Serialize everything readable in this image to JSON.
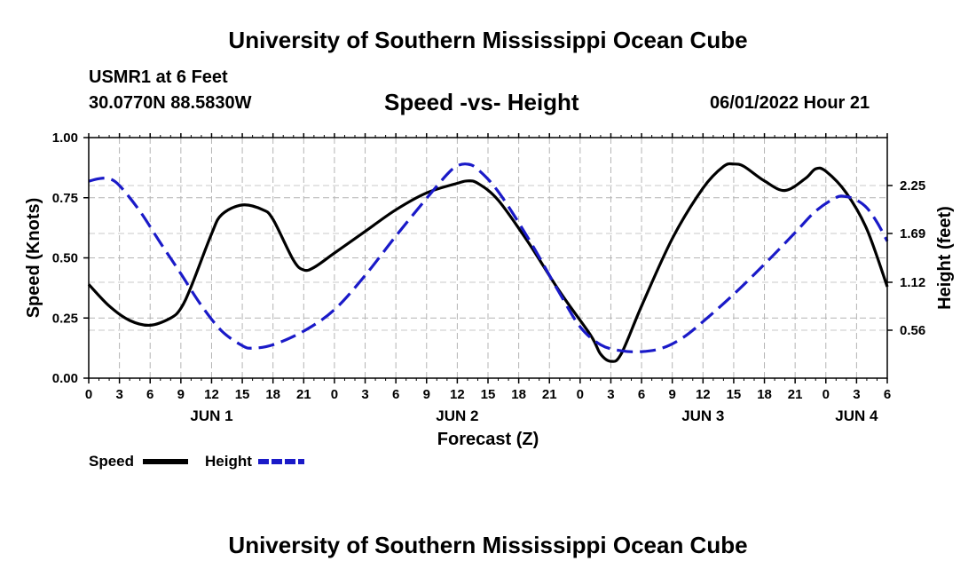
{
  "header": {
    "title_top": "University of Southern Mississippi Ocean Cube",
    "station": "USMR1 at 6 Feet",
    "coordinates": "30.0770N  88.5830W",
    "chart_title": "Speed -vs- Height",
    "datetime": "06/01/2022 Hour 21",
    "title_bottom": "University of Southern Mississippi Ocean Cube"
  },
  "chart_data": {
    "type": "line",
    "title": "Speed -vs- Height",
    "xlabel": "Forecast (Z)",
    "ylabel_left": "Speed (Knots)",
    "ylabel_right": "Height (feet)",
    "xlim_hours": [
      0,
      78
    ],
    "ylim_left": [
      0.0,
      1.0
    ],
    "ylim_right": [
      0.0,
      2.81
    ],
    "grid": true,
    "legend_position": "bottom-left",
    "x_tick_hours": [
      0,
      3,
      6,
      9,
      12,
      15,
      18,
      21,
      24,
      27,
      30,
      33,
      36,
      39,
      42,
      45,
      48,
      51,
      54,
      57,
      60,
      63,
      66,
      69,
      72,
      75,
      78
    ],
    "x_tick_labels": [
      "0",
      "3",
      "6",
      "9",
      "12",
      "15",
      "18",
      "21",
      "0",
      "3",
      "6",
      "9",
      "12",
      "15",
      "18",
      "21",
      "0",
      "3",
      "6",
      "9",
      "12",
      "15",
      "18",
      "21",
      "0",
      "3",
      "6"
    ],
    "date_labels": [
      {
        "label": "JUN 1",
        "hour": 12
      },
      {
        "label": "JUN 2",
        "hour": 36
      },
      {
        "label": "JUN 3",
        "hour": 60
      },
      {
        "label": "JUN 4",
        "hour": 75
      }
    ],
    "y_left_ticks": [
      0.0,
      0.25,
      0.5,
      0.75,
      1.0
    ],
    "y_left_tick_labels": [
      "0.00",
      "0.25",
      "0.50",
      "0.75",
      "1.00"
    ],
    "y_right_ticks": [
      0.56,
      1.12,
      1.69,
      2.25
    ],
    "y_right_tick_labels": [
      "0.56",
      "1.12",
      "1.69",
      "2.25"
    ],
    "series": [
      {
        "name": "Speed",
        "axis": "left",
        "color": "#000000",
        "dash": "solid",
        "points": [
          [
            0,
            0.39
          ],
          [
            2,
            0.3
          ],
          [
            4,
            0.24
          ],
          [
            6,
            0.22
          ],
          [
            8,
            0.25
          ],
          [
            9,
            0.29
          ],
          [
            10,
            0.38
          ],
          [
            12,
            0.6
          ],
          [
            13,
            0.68
          ],
          [
            15,
            0.72
          ],
          [
            17,
            0.7
          ],
          [
            18,
            0.66
          ],
          [
            20,
            0.49
          ],
          [
            21,
            0.45
          ],
          [
            22,
            0.46
          ],
          [
            24,
            0.52
          ],
          [
            27,
            0.61
          ],
          [
            30,
            0.7
          ],
          [
            33,
            0.77
          ],
          [
            36,
            0.81
          ],
          [
            37,
            0.82
          ],
          [
            38,
            0.81
          ],
          [
            40,
            0.74
          ],
          [
            43,
            0.56
          ],
          [
            46,
            0.36
          ],
          [
            49,
            0.18
          ],
          [
            50,
            0.1
          ],
          [
            51,
            0.07
          ],
          [
            52,
            0.1
          ],
          [
            54,
            0.3
          ],
          [
            57,
            0.58
          ],
          [
            60,
            0.79
          ],
          [
            62,
            0.88
          ],
          [
            63,
            0.89
          ],
          [
            64,
            0.88
          ],
          [
            66,
            0.82
          ],
          [
            68,
            0.78
          ],
          [
            70,
            0.83
          ],
          [
            71,
            0.87
          ],
          [
            72,
            0.86
          ],
          [
            74,
            0.77
          ],
          [
            76,
            0.62
          ],
          [
            78,
            0.38
          ]
        ]
      },
      {
        "name": "Height",
        "axis": "right",
        "color": "#1a1ac8",
        "dash": "dashed",
        "points": [
          [
            0,
            2.3
          ],
          [
            1,
            2.33
          ],
          [
            2,
            2.33
          ],
          [
            3,
            2.25
          ],
          [
            5,
            1.95
          ],
          [
            7,
            1.58
          ],
          [
            9,
            1.22
          ],
          [
            11,
            0.85
          ],
          [
            13,
            0.55
          ],
          [
            15,
            0.38
          ],
          [
            16,
            0.35
          ],
          [
            18,
            0.39
          ],
          [
            21,
            0.55
          ],
          [
            24,
            0.8
          ],
          [
            27,
            1.2
          ],
          [
            30,
            1.66
          ],
          [
            33,
            2.1
          ],
          [
            35,
            2.38
          ],
          [
            36,
            2.48
          ],
          [
            37,
            2.5
          ],
          [
            38,
            2.44
          ],
          [
            40,
            2.18
          ],
          [
            43,
            1.62
          ],
          [
            46,
            0.99
          ],
          [
            48,
            0.6
          ],
          [
            50,
            0.39
          ],
          [
            52,
            0.32
          ],
          [
            54,
            0.31
          ],
          [
            56,
            0.35
          ],
          [
            58,
            0.47
          ],
          [
            60,
            0.66
          ],
          [
            63,
            0.98
          ],
          [
            66,
            1.33
          ],
          [
            69,
            1.7
          ],
          [
            71,
            1.95
          ],
          [
            73,
            2.11
          ],
          [
            74,
            2.12
          ],
          [
            75,
            2.08
          ],
          [
            76,
            1.99
          ],
          [
            77,
            1.82
          ],
          [
            78,
            1.6
          ]
        ]
      }
    ],
    "legend": [
      {
        "label": "Speed",
        "series": "Speed"
      },
      {
        "label": "Height",
        "series": "Height"
      }
    ]
  }
}
